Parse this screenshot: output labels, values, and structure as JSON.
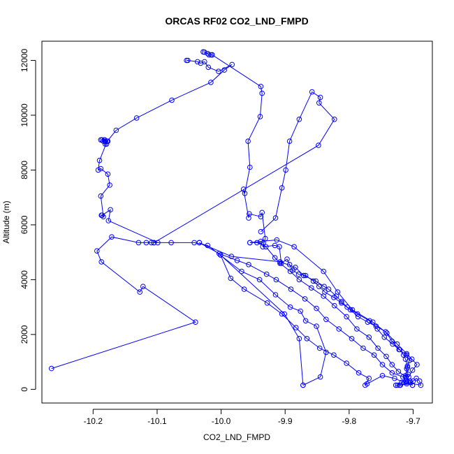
{
  "chart_data": {
    "type": "line",
    "title": "ORCAS RF02 CO2_LND_FMPD",
    "xlabel": "CO2_LND_FMPD",
    "ylabel": "Altitude (m)",
    "xlim": [
      -10.28,
      -9.67
    ],
    "ylim": [
      -500,
      12700
    ],
    "xticks": [
      -10.2,
      -10.1,
      -10.0,
      -9.9,
      -9.8,
      -9.7
    ],
    "xtick_labels": [
      "-10.2",
      "-10.1",
      "-10.0",
      "-9.9",
      "-9.8",
      "-9.7"
    ],
    "yticks": [
      0,
      2000,
      4000,
      6000,
      8000,
      10000,
      12000
    ],
    "ytick_labels": [
      "0",
      "2000",
      "4000",
      "6000",
      "8000",
      "10000",
      "12000"
    ],
    "grid": false,
    "line_color": "#0000ff",
    "marker": "open-circle",
    "series": [
      {
        "x": [
          -10.265,
          -10.04,
          -10.122,
          -10.127,
          -10.187,
          -10.194,
          -10.171,
          -10.129,
          -10.117,
          -10.109,
          -10.099,
          -10.176,
          -10.173,
          -10.186,
          -10.187,
          -10.184,
          -10.188,
          -10.174,
          -10.177,
          -10.188,
          -10.192,
          -10.19,
          -10.178,
          -10.182,
          -10.188,
          -10.181,
          -10.179,
          -10.181,
          -10.177,
          -10.186,
          -10.184,
          -10.182,
          -10.178,
          -10.164,
          -10.132,
          -10.077,
          -10.016,
          -9.995,
          -9.983,
          -10.004,
          -10.02,
          -10.026,
          -10.032,
          -10.037,
          -10.052,
          -10.054
        ],
        "y": [
          760,
          2450,
          3750,
          3550,
          4650,
          5050,
          5560,
          5350,
          5350,
          5350,
          5350,
          6150,
          6550,
          6350,
          6350,
          6300,
          7050,
          7450,
          7850,
          8050,
          8000,
          8350,
          9050,
          9100,
          9100,
          9050,
          8950,
          8950,
          9050,
          9100,
          9050,
          9100,
          9050,
          9450,
          9900,
          10550,
          11200,
          11650,
          11850,
          11600,
          11750,
          11950,
          11900,
          11950,
          12000,
          12000
        ]
      },
      {
        "x": [
          -10.028,
          -10.026,
          -10.021,
          -10.019,
          -10.016,
          -10.014
        ],
        "y": [
          12310,
          12300,
          12250,
          12200,
          12200,
          12200
        ]
      },
      {
        "x": [
          -10.014,
          -9.938,
          -9.936,
          -9.939,
          -9.958,
          -9.955,
          -9.963,
          -9.965,
          -9.957,
          -9.956,
          -9.938,
          -9.936,
          -9.931,
          -9.935,
          -9.916,
          -9.909,
          -9.906,
          -9.897,
          -9.893,
          -9.888,
          -9.879,
          -9.868,
          -9.856,
          -9.847,
          -9.838,
          -9.824,
          -9.812,
          -9.798,
          -9.786,
          -9.771,
          -9.758,
          -9.743,
          -9.733,
          -9.721,
          -9.715,
          -9.712,
          -9.709,
          -9.71,
          -9.708,
          -9.711
        ],
        "y": [
          12200,
          11050,
          10800,
          9950,
          9050,
          8100,
          7150,
          7300,
          6250,
          6400,
          6300,
          6450,
          5500,
          5200,
          5250,
          5200,
          4600,
          4750,
          4550,
          4350,
          4200,
          4150,
          3950,
          3750,
          3550,
          3350,
          3150,
          2900,
          2650,
          2450,
          2300,
          2100,
          1750,
          1450,
          1250,
          1100,
          850,
          750,
          550,
          450
        ]
      },
      {
        "x": [
          -9.711,
          -9.723,
          -9.733,
          -9.742,
          -9.755,
          -9.769,
          -9.788,
          -9.804,
          -9.823,
          -9.84,
          -9.859,
          -9.878,
          -9.892,
          -9.908,
          -9.916,
          -9.93,
          -9.944,
          -9.934,
          -9.955
        ],
        "y": [
          450,
          650,
          900,
          1200,
          1500,
          1900,
          2200,
          2650,
          3050,
          3400,
          3700,
          4000,
          4300,
          4600,
          4800,
          5200,
          5350,
          5350,
          5350
        ]
      },
      {
        "x": [
          -9.955,
          -9.938,
          -9.913,
          -9.886,
          -9.84,
          -9.818,
          -9.795,
          -9.763,
          -9.741,
          -9.725,
          -9.71,
          -9.702,
          -9.694,
          -9.701,
          -9.707,
          -9.711,
          -9.718,
          -9.724,
          -9.721,
          -9.727
        ],
        "y": [
          5350,
          5400,
          5450,
          5200,
          4300,
          3550,
          2900,
          2450,
          2050,
          1650,
          1300,
          1100,
          900,
          700,
          450,
          300,
          250,
          150,
          150,
          150
        ]
      },
      {
        "x": [
          -9.727,
          -9.72,
          -9.71,
          -9.704,
          -9.7,
          -9.695,
          -9.69,
          -9.688,
          -9.71,
          -9.716,
          -9.733,
          -9.748,
          -9.761,
          -9.778,
          -9.796,
          -9.816,
          -9.836,
          -9.851,
          -9.869,
          -9.891,
          -9.914,
          -9.929,
          -9.957,
          -9.975,
          -10.003,
          -10.034
        ],
        "y": [
          150,
          150,
          200,
          250,
          300,
          400,
          300,
          150,
          250,
          450,
          600,
          900,
          1250,
          1500,
          1850,
          2200,
          2550,
          2950,
          3300,
          3650,
          4000,
          4200,
          4550,
          4700,
          4950,
          5350
        ]
      },
      {
        "x": [
          -10.034,
          -9.984,
          -9.908,
          -9.884,
          -9.871
        ],
        "y": [
          5350,
          4850,
          4650,
          4450,
          4150
        ]
      },
      {
        "x": [
          -9.871,
          -9.852,
          -9.839,
          -9.832,
          -9.82,
          -9.812,
          -9.803,
          -9.787,
          -9.768,
          -9.756,
          -9.745,
          -9.732,
          -9.722,
          -9.71,
          -9.706,
          -9.709,
          -9.712,
          -9.705,
          -9.701
        ],
        "y": [
          4150,
          3950,
          3750,
          3650,
          3400,
          3200,
          3000,
          2750,
          2500,
          2200,
          1900,
          1650,
          1450,
          1250,
          1050,
          800,
          500,
          300,
          150
        ]
      },
      {
        "x": [
          -9.701,
          -9.714,
          -9.729,
          -9.748,
          -9.772,
          -9.775,
          -9.769,
          -9.785,
          -9.804,
          -9.824,
          -9.846,
          -9.866,
          -9.883,
          -9.905,
          -9.928,
          -9.964,
          -9.985,
          -10.001
        ],
        "y": [
          150,
          250,
          400,
          500,
          200,
          150,
          400,
          600,
          950,
          1250,
          1500,
          1850,
          2250,
          2750,
          3150,
          3650,
          4050,
          4900
        ]
      },
      {
        "x": [
          -10.001,
          -9.901,
          -9.878,
          -9.872
        ],
        "y": [
          4900,
          2750,
          1850,
          150
        ]
      },
      {
        "x": [
          -9.872,
          -9.845,
          -9.836,
          -9.851,
          -9.868,
          -9.876,
          -9.892,
          -9.915,
          -9.94,
          -9.968,
          -10.021,
          -10.042,
          -10.078,
          -10.105
        ],
        "y": [
          150,
          450,
          1350,
          2300,
          2500,
          2850,
          3000,
          3450,
          4000,
          4300,
          5250,
          5350,
          5350,
          5350
        ]
      },
      {
        "x": [
          -10.105,
          -9.848,
          -9.823,
          -9.847,
          -9.845,
          -9.858,
          -9.878,
          -9.893,
          -9.899,
          -9.905,
          -9.915,
          -9.938
        ],
        "y": [
          5350,
          8900,
          9850,
          10450,
          10650,
          10850,
          9850,
          9050,
          8000,
          7350,
          6250,
          5750
        ]
      }
    ]
  }
}
